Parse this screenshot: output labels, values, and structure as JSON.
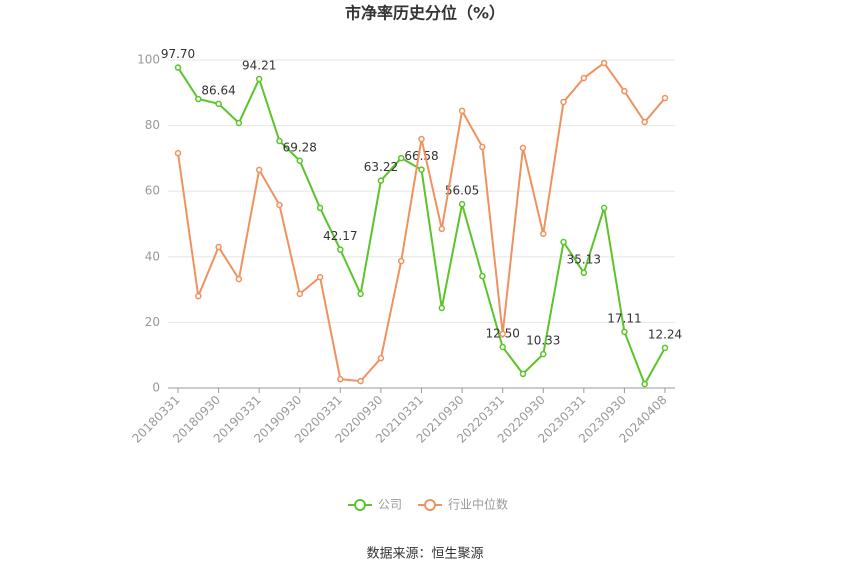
{
  "chart_data": {
    "type": "line",
    "title": "市净率历史分位（%）",
    "source": "数据来源：恒生聚源",
    "categories": [
      "20180331",
      null,
      "20180930",
      null,
      "20190331",
      null,
      "20190930",
      null,
      "20200331",
      null,
      "20200930",
      null,
      "20210331",
      null,
      "20210930",
      null,
      "20220331",
      null,
      "20220930",
      null,
      "20230331",
      null,
      "20230930",
      null,
      "20240408"
    ],
    "series": [
      {
        "name": "公司",
        "color": "#5bc42a",
        "values": [
          97.7,
          88.1,
          86.64,
          80.8,
          94.21,
          75.3,
          69.28,
          54.9,
          42.17,
          28.7,
          63.22,
          70.1,
          66.58,
          24.4,
          56.05,
          34.1,
          12.5,
          4.3,
          10.33,
          44.5,
          35.13,
          54.9,
          17.11,
          1.2,
          12.24
        ],
        "value_labels": [
          "97.70",
          null,
          "86.64",
          null,
          "94.21",
          null,
          "69.28",
          null,
          "42.17",
          null,
          "63.22",
          null,
          "66.58",
          null,
          "56.05",
          null,
          "12.50",
          null,
          "10.33",
          null,
          "35.13",
          null,
          "17.11",
          null,
          "12.24"
        ]
      },
      {
        "name": "行业中位数",
        "color": "#f0925f",
        "values": [
          71.6,
          28.0,
          43.0,
          33.2,
          66.5,
          55.8,
          28.7,
          33.8,
          2.7,
          2.1,
          9.1,
          38.7,
          75.9,
          48.5,
          84.5,
          73.5,
          16.5,
          73.2,
          47.0,
          87.2,
          94.5,
          99.1,
          90.5,
          81.1,
          88.4
        ]
      }
    ],
    "ylim": [
      0,
      100
    ],
    "yticks": [
      0,
      20,
      40,
      60,
      80,
      100
    ],
    "grid": true,
    "legend": "bottom"
  }
}
